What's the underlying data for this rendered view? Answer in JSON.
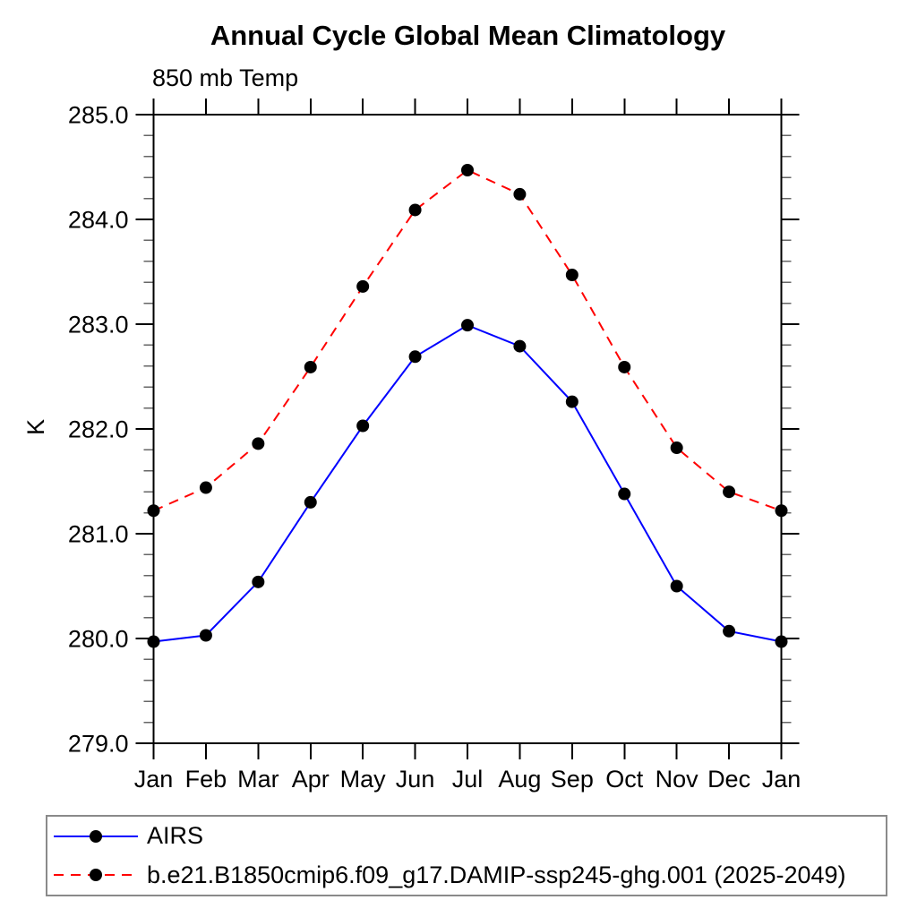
{
  "page": {
    "background": "#ffffff"
  },
  "chart_data": {
    "type": "line",
    "title": "Annual Cycle Global Mean Climatology",
    "subtitle": "850 mb Temp",
    "ylabel": "K",
    "xlabel": "",
    "ylim": [
      279.0,
      285.0
    ],
    "ytick_interval": 1.0,
    "yminor_interval": 0.2,
    "ytick_labels": [
      "279.0",
      "280.0",
      "281.0",
      "282.0",
      "283.0",
      "284.0",
      "285.0"
    ],
    "categories": [
      "Jan",
      "Feb",
      "Mar",
      "Apr",
      "May",
      "Jun",
      "Jul",
      "Aug",
      "Sep",
      "Oct",
      "Nov",
      "Dec",
      "Jan"
    ],
    "grid": false,
    "legend_position": "bottom-left-box",
    "axis_color": "#000000",
    "minor_tick_color": "#666666",
    "marker_color": "#000000",
    "series": [
      {
        "name": "AIRS",
        "color": "#0000ff",
        "line_style": "solid",
        "marker": "filled-circle",
        "values": [
          279.97,
          280.03,
          280.54,
          281.3,
          282.03,
          282.69,
          282.99,
          282.79,
          282.26,
          281.38,
          280.5,
          280.07,
          279.97
        ]
      },
      {
        "name": "b.e21.B1850cmip6.f09_g17.DAMIP-ssp245-ghg.001 (2025-2049)",
        "color": "#ff0000",
        "line_style": "dashed",
        "marker": "filled-circle",
        "values": [
          281.22,
          281.44,
          281.86,
          282.59,
          283.36,
          284.09,
          284.47,
          284.24,
          283.47,
          282.59,
          281.82,
          281.4,
          281.22
        ]
      }
    ]
  }
}
